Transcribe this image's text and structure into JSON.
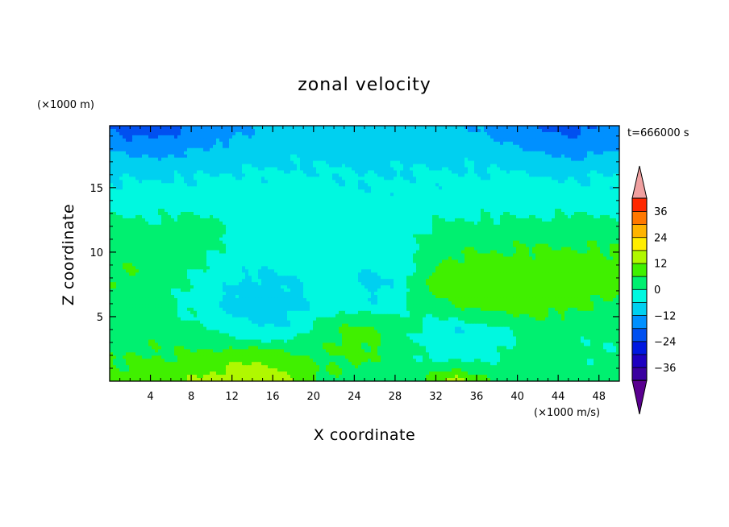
{
  "chart_data": {
    "type": "heatmap",
    "title": "zonal velocity",
    "xlabel": "X coordinate",
    "ylabel": "Z coordinate",
    "x_unit": "(×1000 m/s)",
    "y_unit": "(×1000 m)",
    "time_label": "t=666000 s",
    "xlim": [
      0,
      50
    ],
    "ylim": [
      0,
      19.8
    ],
    "x_ticks": [
      4,
      8,
      12,
      16,
      20,
      24,
      28,
      32,
      36,
      40,
      44,
      48
    ],
    "y_ticks": [
      5,
      10,
      15
    ],
    "grid": false,
    "colorbar": {
      "position": "right",
      "ticks": [
        36,
        24,
        12,
        0,
        -12,
        -24,
        -36
      ],
      "levels": [
        -42,
        -36,
        -30,
        -24,
        -18,
        -12,
        -6,
        0,
        6,
        12,
        18,
        24,
        30,
        36,
        42
      ],
      "colors": [
        "#5a0090",
        "#3a00a0",
        "#1e00c0",
        "#0018e0",
        "#0050f0",
        "#0090ff",
        "#00d0f0",
        "#00f8e0",
        "#00f070",
        "#40f000",
        "#b0f800",
        "#ffee00",
        "#ffb400",
        "#ff7800",
        "#ff2800",
        "#f0a0a0"
      ],
      "extend": "both"
    },
    "field": {
      "description_values": "approximate zonal velocity (data units of colour scale) sampled on a 26 x 11 grid; rows from top (z=19.8) to bottom (z=0), columns from x=0 to x=50",
      "x": [
        0,
        2,
        4,
        6,
        8,
        10,
        12,
        14,
        16,
        18,
        20,
        22,
        24,
        26,
        28,
        30,
        32,
        34,
        36,
        38,
        40,
        42,
        44,
        46,
        48,
        50
      ],
      "z": [
        19.8,
        18,
        16,
        14,
        12,
        10,
        8,
        6,
        4,
        2,
        0
      ],
      "values": [
        [
          -20,
          -22,
          -22,
          -20,
          -18,
          -16,
          -14,
          -12,
          -12,
          -10,
          -10,
          -10,
          -10,
          -10,
          -10,
          -10,
          -10,
          -10,
          -12,
          -14,
          -16,
          -18,
          -20,
          -20,
          -18,
          -16
        ],
        [
          -12,
          -14,
          -14,
          -13,
          -12,
          -11,
          -10,
          -9,
          -8,
          -8,
          -8,
          -8,
          -8,
          -8,
          -8,
          -8,
          -8,
          -8,
          -9,
          -10,
          -11,
          -12,
          -13,
          -14,
          -13,
          -12
        ],
        [
          -6,
          -7,
          -7,
          -6,
          -6,
          -6,
          -5,
          -5,
          -5,
          -5,
          -5,
          -5,
          -6,
          -6,
          -6,
          -5,
          -5,
          -5,
          -5,
          -5,
          -5,
          -6,
          -6,
          -6,
          -6,
          -6
        ],
        [
          -3,
          -2,
          -2,
          -3,
          -3,
          -3,
          -3,
          -3,
          -3,
          -3,
          -3,
          -4,
          -4,
          -4,
          -4,
          -4,
          -4,
          -4,
          -3,
          -3,
          -3,
          -3,
          -3,
          -3,
          -3,
          -3
        ],
        [
          3,
          2,
          1,
          2,
          3,
          2,
          -1,
          -2,
          -2,
          -2,
          -3,
          -2,
          -1,
          -2,
          -3,
          -2,
          1,
          2,
          2,
          2,
          2,
          2,
          3,
          3,
          2,
          2
        ],
        [
          5,
          5,
          4,
          3,
          2,
          0,
          -2,
          -3,
          -3,
          -2,
          -1,
          -2,
          -3,
          -4,
          -3,
          0,
          4,
          6,
          6,
          6,
          7,
          7,
          7,
          7,
          7,
          7
        ],
        [
          5,
          6,
          4,
          2,
          0,
          -3,
          -5,
          -7,
          -7,
          -6,
          -4,
          -3,
          -6,
          -8,
          -5,
          2,
          8,
          10,
          10,
          10,
          10,
          10,
          10,
          9,
          9,
          8
        ],
        [
          4,
          4,
          3,
          1,
          -2,
          -5,
          -8,
          -9,
          -9,
          -8,
          -6,
          -3,
          -4,
          -5,
          -3,
          2,
          5,
          8,
          9,
          9,
          10,
          9,
          8,
          7,
          6,
          5
        ],
        [
          3,
          4,
          4,
          3,
          2,
          1,
          -3,
          -5,
          -6,
          -4,
          2,
          6,
          8,
          7,
          4,
          0,
          -4,
          -6,
          -4,
          -2,
          0,
          2,
          3,
          2,
          1,
          2
        ],
        [
          5,
          6,
          6,
          6,
          7,
          8,
          9,
          10,
          9,
          7,
          5,
          6,
          8,
          6,
          3,
          1,
          -3,
          -4,
          -3,
          -1,
          2,
          3,
          2,
          1,
          0,
          1
        ],
        [
          8,
          8,
          9,
          10,
          12,
          14,
          16,
          18,
          17,
          12,
          7,
          5,
          4,
          3,
          2,
          4,
          10,
          16,
          10,
          5,
          3,
          3,
          3,
          3,
          3,
          4
        ]
      ]
    }
  }
}
